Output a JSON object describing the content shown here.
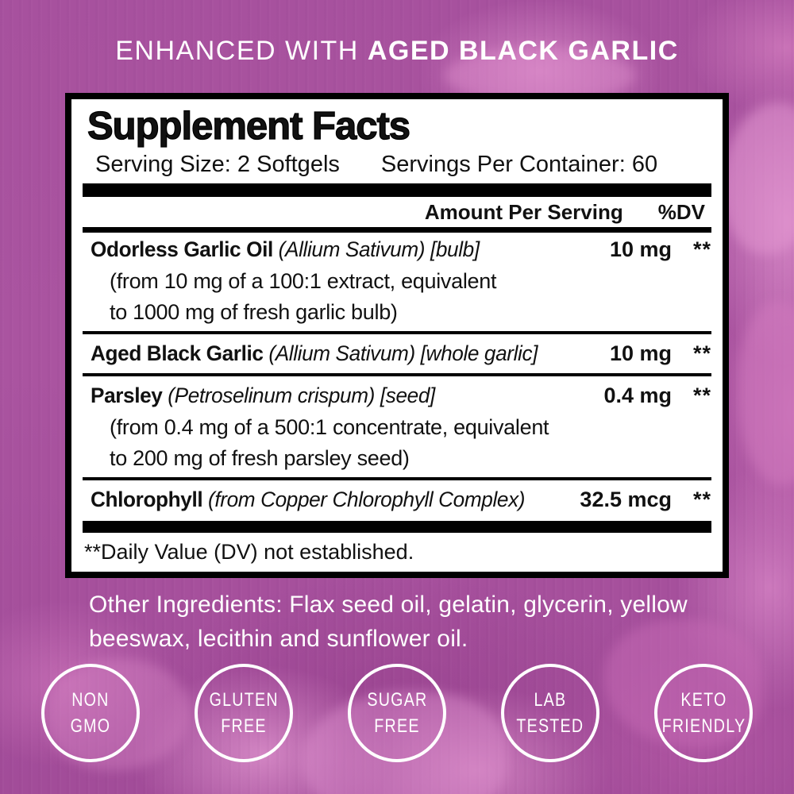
{
  "colors": {
    "background_magenta": "#a4509c",
    "clove_pink": "#d887c7",
    "panel_bg": "#ffffff",
    "panel_border": "#000000",
    "label_text": "#111111",
    "light_text": "#ffffff"
  },
  "banner": {
    "prefix": "ENHANCED WITH ",
    "highlight": "AGED BLACK GARLIC"
  },
  "panel": {
    "title": "Supplement Facts",
    "serving_size": "Serving Size: 2 Softgels",
    "servings_per_container": "Servings Per Container: 60",
    "col_amount": "Amount Per Serving",
    "col_dv": "%DV",
    "rows": [
      {
        "name": "Odorless Garlic Oil",
        "detail": "(Allium Sativum) [bulb]",
        "amount": "10 mg",
        "dv": "**",
        "note_lines": [
          "(from 10 mg of a 100:1 extract, equivalent",
          "to 1000 mg of fresh garlic bulb)"
        ]
      },
      {
        "name": "Aged Black Garlic",
        "detail": "(Allium Sativum) [whole garlic]",
        "amount": "10 mg",
        "dv": "**",
        "note_lines": []
      },
      {
        "name": "Parsley",
        "detail": "(Petroselinum crispum) [seed]",
        "amount": "0.4 mg",
        "dv": "**",
        "note_lines": [
          "(from 0.4 mg of a 500:1 concentrate, equivalent",
          "to 200 mg of fresh parsley seed)"
        ]
      },
      {
        "name": "Chlorophyll",
        "detail": "(from Copper Chlorophyll Complex)",
        "amount": "32.5 mcg",
        "dv": "**",
        "note_lines": []
      }
    ],
    "footnote": "**Daily Value (DV) not established."
  },
  "other_ingredients": {
    "line1": "Other Ingredients: Flax seed oil, gelatin, glycerin, yellow",
    "line2": "beeswax, lecithin and sunflower oil."
  },
  "badges": [
    {
      "line1": "NON",
      "line2": "GMO"
    },
    {
      "line1": "GLUTEN",
      "line2": "FREE"
    },
    {
      "line1": "SUGAR",
      "line2": "FREE"
    },
    {
      "line1": "LAB",
      "line2": "TESTED"
    },
    {
      "line1": "KETO",
      "line2": "FRIENDLY"
    }
  ]
}
